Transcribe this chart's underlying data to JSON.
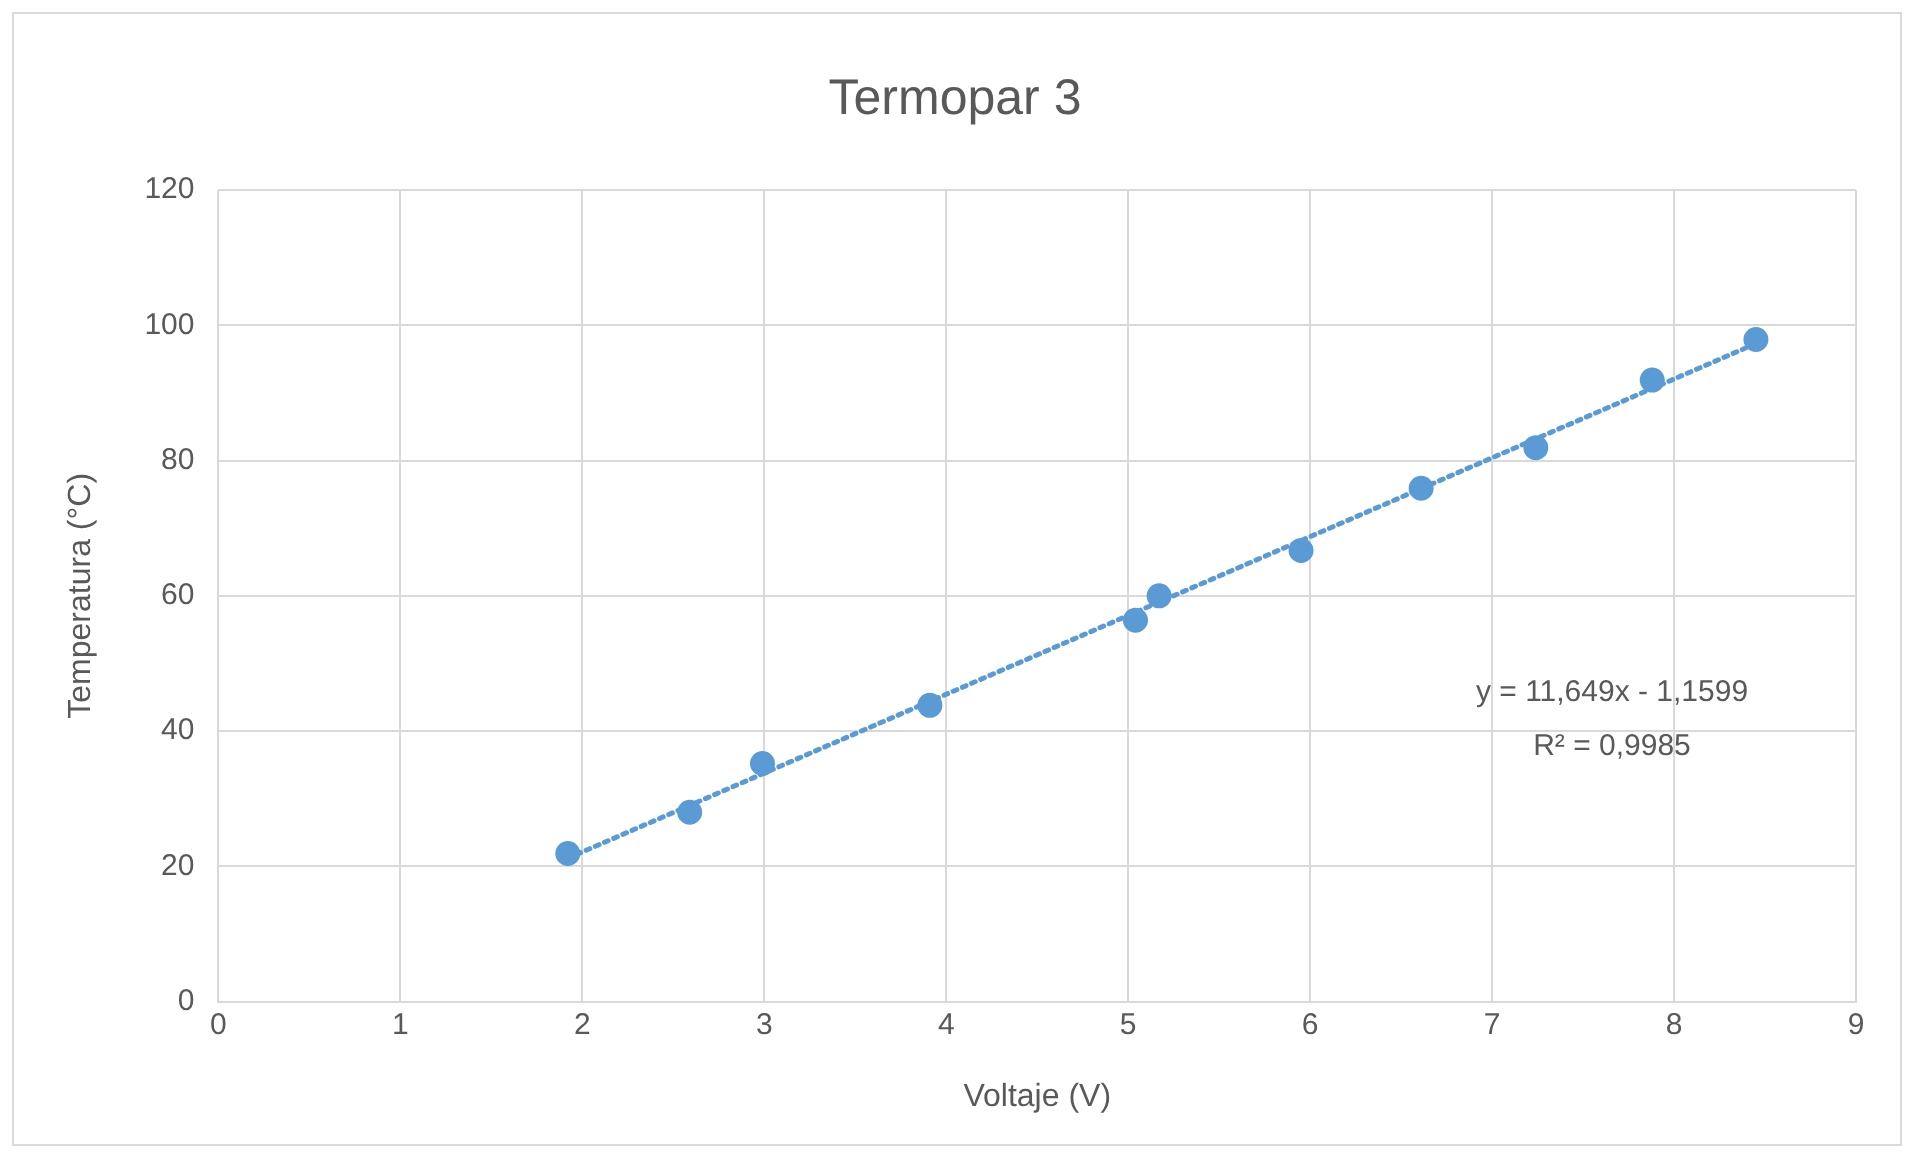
{
  "chart_data": {
    "type": "scatter",
    "title": "Termopar 3",
    "xlabel": "Voltaje (V)",
    "ylabel": "Temperatura (°C)",
    "xlim": [
      0,
      9
    ],
    "xticks": [
      0,
      1,
      2,
      3,
      4,
      5,
      6,
      7,
      8,
      9
    ],
    "ylim": [
      0,
      120
    ],
    "yticks": [
      0,
      20,
      40,
      60,
      80,
      100,
      120
    ],
    "grid": true,
    "legend": false,
    "marker": "circle",
    "series": [
      {
        "color": "#5b9bd5",
        "x": [
          1.92,
          2.59,
          2.99,
          3.91,
          5.04,
          5.17,
          5.95,
          6.61,
          7.24,
          7.88,
          8.45
        ],
        "values": [
          21.9,
          28.0,
          35.2,
          43.8,
          56.4,
          60.0,
          66.7,
          75.9,
          81.9,
          91.9,
          97.9
        ]
      },
      {
        "type": "line",
        "color": "#5b9bd5",
        "marker": "none",
        "line_style": "dotted",
        "x": [
          1.92,
          8.45
        ],
        "values": [
          21.2,
          97.3
        ]
      }
    ],
    "annotations": [
      "y = 11,649x - 1,1599",
      "R² = 0,9985"
    ]
  }
}
